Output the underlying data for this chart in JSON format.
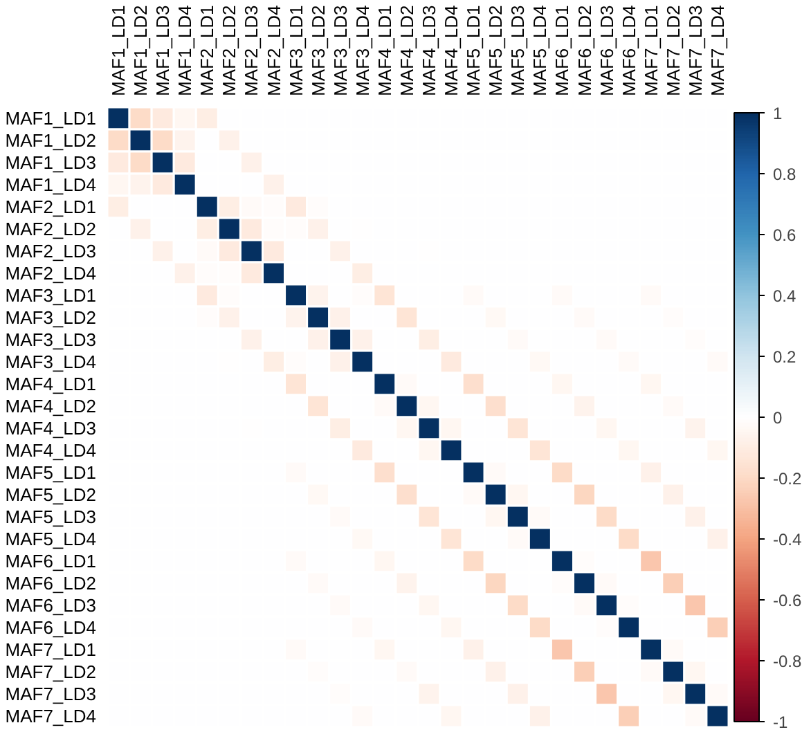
{
  "chart_data": {
    "type": "heatmap",
    "categories": [
      "MAF1_LD1",
      "MAF1_LD2",
      "MAF1_LD3",
      "MAF1_LD4",
      "MAF2_LD1",
      "MAF2_LD2",
      "MAF2_LD3",
      "MAF2_LD4",
      "MAF3_LD1",
      "MAF3_LD2",
      "MAF3_LD3",
      "MAF3_LD4",
      "MAF4_LD1",
      "MAF4_LD2",
      "MAF4_LD3",
      "MAF4_LD4",
      "MAF5_LD1",
      "MAF5_LD2",
      "MAF5_LD3",
      "MAF5_LD4",
      "MAF6_LD1",
      "MAF6_LD2",
      "MAF6_LD3",
      "MAF6_LD4",
      "MAF7_LD1",
      "MAF7_LD2",
      "MAF7_LD3",
      "MAF7_LD4"
    ],
    "y_categories": [
      "MAF1_LD1",
      "MAF1_LD2",
      "MAF1_LD3",
      "MAF1_LD4",
      "MAF2_LD1",
      "MAF2_LD2",
      "MAF2_LD3",
      "MAF2_LD4",
      "MAF3_LD1",
      "MAF3_LD2",
      "MAF3_LD3",
      "MAF3_LD4",
      "MAF4_LD1",
      "MAF4_LD2",
      "MAF4_LD3",
      "MAF4_LD4",
      "MAF5_LD1",
      "MAF5_LD2",
      "MAF5_LD3",
      "MAF5_LD4",
      "MAF6_LD1",
      "MAF6_LD2",
      "MAF6_LD3",
      "MAF6_LD4",
      "MAF7_LD1",
      "MAF7_LD2",
      "MAF7_LD3",
      "MAF7_LD4"
    ],
    "cells": [
      [
        1,
        -0.2,
        -0.12,
        -0.05,
        -0.1,
        0,
        0,
        0,
        0,
        0,
        0,
        0,
        0,
        0,
        0,
        0,
        0,
        0,
        0,
        0,
        0,
        0,
        0,
        0,
        0,
        0,
        0,
        0
      ],
      [
        -0.2,
        1,
        -0.2,
        -0.06,
        0,
        -0.08,
        0,
        0,
        0,
        0,
        0,
        0,
        0,
        0,
        0,
        0,
        0,
        0,
        0,
        0,
        0,
        0,
        0,
        0,
        0,
        0,
        0,
        0
      ],
      [
        -0.12,
        -0.2,
        1,
        -0.12,
        0,
        0,
        -0.08,
        0,
        0,
        0,
        0,
        0,
        0,
        0,
        0,
        0,
        0,
        0,
        0,
        0,
        0,
        0,
        0,
        0,
        0,
        0,
        0,
        0
      ],
      [
        -0.05,
        -0.06,
        -0.12,
        1,
        0,
        0,
        0,
        -0.08,
        0,
        0,
        0,
        0,
        0,
        0,
        0,
        0,
        0,
        0,
        0,
        0,
        0,
        0,
        0,
        0,
        0,
        0,
        0,
        0
      ],
      [
        -0.1,
        0,
        0,
        0,
        1,
        -0.1,
        -0.03,
        -0.02,
        -0.12,
        -0.02,
        0,
        0,
        0,
        0,
        0,
        0,
        0,
        0,
        0,
        0,
        0,
        0,
        0,
        0,
        0,
        0,
        0,
        0
      ],
      [
        0,
        -0.08,
        0,
        0,
        -0.1,
        1,
        -0.12,
        -0.02,
        -0.02,
        -0.08,
        0,
        -0.01,
        0,
        0,
        0,
        0,
        0,
        0,
        0,
        0,
        0,
        0,
        0,
        0,
        0,
        0,
        0,
        0
      ],
      [
        0,
        0,
        -0.08,
        0,
        -0.03,
        -0.12,
        1,
        -0.12,
        0,
        0,
        -0.08,
        0,
        0,
        0,
        -0.01,
        0,
        0,
        0,
        0,
        0,
        0,
        0,
        0,
        0,
        0,
        0,
        0,
        0
      ],
      [
        0,
        0,
        0,
        -0.08,
        -0.02,
        -0.02,
        -0.12,
        1,
        0,
        0,
        0,
        -0.1,
        0,
        0,
        0,
        0,
        0,
        0,
        0,
        0,
        0,
        0,
        0,
        0,
        0,
        0,
        0,
        0
      ],
      [
        0,
        0,
        0,
        0,
        -0.12,
        -0.02,
        0,
        0,
        1,
        -0.06,
        0,
        -0.02,
        -0.15,
        0,
        0,
        0,
        -0.03,
        0,
        0,
        0,
        -0.03,
        0,
        0,
        0,
        -0.03,
        0,
        0,
        0
      ],
      [
        0,
        0,
        0,
        0,
        -0.02,
        -0.08,
        0,
        0,
        -0.06,
        1,
        -0.08,
        0,
        0,
        -0.15,
        0,
        0,
        0,
        -0.04,
        0,
        0,
        0,
        -0.03,
        0,
        0,
        0,
        -0.02,
        0,
        0
      ],
      [
        0,
        0,
        0,
        0,
        0,
        0,
        -0.08,
        0,
        0,
        -0.08,
        1,
        -0.08,
        0,
        0,
        -0.1,
        0,
        0,
        0,
        -0.03,
        0,
        0,
        0,
        -0.03,
        0,
        0,
        0,
        -0.02,
        0
      ],
      [
        0,
        0,
        0,
        0,
        0,
        -0.01,
        0,
        -0.1,
        -0.02,
        0,
        -0.08,
        1,
        0,
        0,
        0,
        -0.12,
        0,
        0,
        0,
        -0.04,
        0,
        0,
        0,
        -0.03,
        0,
        0,
        0,
        -0.03
      ],
      [
        0,
        0,
        0,
        0,
        0,
        0,
        0,
        0,
        -0.15,
        0,
        0,
        0,
        1,
        -0.03,
        0,
        0,
        -0.18,
        0,
        0,
        0,
        -0.05,
        0,
        0,
        0,
        -0.05,
        0,
        0,
        0
      ],
      [
        0,
        0,
        0,
        0,
        0,
        0,
        0,
        0,
        0,
        -0.15,
        0,
        0,
        -0.03,
        1,
        -0.05,
        0,
        0,
        -0.18,
        0,
        0,
        0,
        -0.06,
        0,
        0,
        0,
        -0.03,
        0,
        0
      ],
      [
        0,
        0,
        0,
        0,
        0,
        0,
        -0.01,
        0,
        0,
        0,
        -0.1,
        0,
        0,
        -0.05,
        1,
        -0.05,
        0,
        0,
        -0.15,
        0,
        0,
        0,
        -0.05,
        0,
        0,
        0,
        -0.06,
        0
      ],
      [
        0,
        0,
        0,
        0,
        0,
        0,
        0,
        0,
        0,
        0,
        0,
        -0.12,
        0,
        0,
        -0.05,
        1,
        0,
        0,
        0,
        -0.15,
        0,
        0,
        0,
        -0.05,
        0,
        0,
        0,
        -0.05
      ],
      [
        0,
        0,
        0,
        0,
        0,
        0,
        0,
        0,
        -0.03,
        0,
        0,
        0,
        -0.18,
        0,
        0,
        0,
        1,
        -0.03,
        0,
        0,
        -0.2,
        0,
        0,
        0,
        -0.08,
        0,
        0,
        0
      ],
      [
        0,
        0,
        0,
        0,
        0,
        0,
        0,
        0,
        0,
        -0.04,
        0,
        0,
        0,
        -0.18,
        0,
        0,
        -0.03,
        1,
        -0.05,
        0,
        0,
        -0.22,
        0,
        0,
        0,
        -0.08,
        0,
        0
      ],
      [
        0,
        0,
        0,
        0,
        0,
        0,
        0,
        0,
        0,
        0,
        -0.03,
        0,
        0,
        0,
        -0.15,
        0,
        0,
        -0.05,
        1,
        -0.03,
        0,
        0,
        -0.2,
        0,
        0,
        0,
        -0.08,
        0
      ],
      [
        0,
        0,
        0,
        0,
        0,
        0,
        0,
        0,
        0,
        0,
        0,
        -0.04,
        0,
        0,
        0,
        -0.15,
        0,
        0,
        -0.03,
        1,
        0,
        0,
        0,
        -0.2,
        0,
        0,
        0,
        -0.08
      ],
      [
        0,
        0,
        0,
        0,
        0,
        0,
        0,
        0,
        -0.03,
        0,
        0,
        0,
        -0.05,
        0,
        0,
        0,
        -0.2,
        0,
        0,
        0,
        1,
        -0.02,
        0,
        0,
        -0.28,
        0,
        0,
        0
      ],
      [
        0,
        0,
        0,
        0,
        0,
        0,
        0,
        0,
        0,
        -0.03,
        0,
        0,
        0,
        -0.06,
        0,
        0,
        0,
        -0.22,
        0,
        0,
        -0.02,
        1,
        -0.03,
        0,
        0,
        -0.25,
        0,
        0
      ],
      [
        0,
        0,
        0,
        0,
        0,
        0,
        0,
        0,
        0,
        0,
        -0.03,
        0,
        0,
        0,
        -0.05,
        0,
        0,
        0,
        -0.2,
        0,
        0,
        -0.03,
        1,
        -0.02,
        0,
        0,
        -0.28,
        0
      ],
      [
        0,
        0,
        0,
        0,
        0,
        0,
        0,
        0,
        0,
        0,
        0,
        -0.03,
        0,
        0,
        0,
        -0.05,
        0,
        0,
        0,
        -0.2,
        0,
        0,
        -0.02,
        1,
        0,
        0,
        0,
        -0.25
      ],
      [
        0,
        0,
        0,
        0,
        0,
        0,
        0,
        0,
        -0.03,
        0,
        0,
        0,
        -0.05,
        0,
        0,
        0,
        -0.08,
        0,
        0,
        0,
        -0.28,
        0,
        0,
        0,
        1,
        -0.03,
        0,
        0
      ],
      [
        0,
        0,
        0,
        0,
        0,
        0,
        0,
        0,
        0,
        -0.02,
        0,
        0,
        0,
        -0.03,
        0,
        0,
        0,
        -0.08,
        0,
        0,
        0,
        -0.25,
        0,
        0,
        -0.03,
        1,
        -0.05,
        0
      ],
      [
        0,
        0,
        0,
        0,
        0,
        0,
        0,
        0,
        0,
        0,
        -0.02,
        0,
        0,
        0,
        -0.06,
        0,
        0,
        0,
        -0.08,
        0,
        0,
        0,
        -0.28,
        0,
        0,
        -0.05,
        1,
        -0.03
      ],
      [
        0,
        0,
        0,
        0,
        0,
        0,
        0,
        0,
        0,
        0,
        0,
        -0.03,
        0,
        0,
        0,
        -0.05,
        0,
        0,
        0,
        -0.08,
        0,
        0,
        0,
        -0.25,
        0,
        0,
        -0.03,
        1
      ]
    ],
    "clim": [
      -1,
      1
    ],
    "cticks": [
      -1,
      -0.8,
      -0.6,
      -0.4,
      -0.2,
      0,
      0.2,
      0.4,
      0.6,
      0.8,
      1
    ]
  }
}
